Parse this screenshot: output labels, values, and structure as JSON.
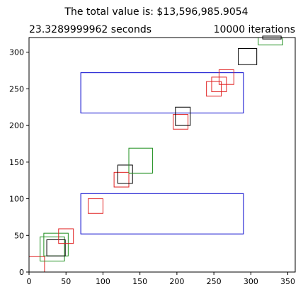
{
  "chart_data": {
    "type": "rectangles",
    "title": "The total value is: $13,596,985.9054",
    "subtitle_left": "23.3289999962 seconds",
    "subtitle_right": "10000 iterations",
    "xlabel": "",
    "ylabel": "",
    "xlim": [
      0,
      360
    ],
    "ylim": [
      0,
      320
    ],
    "x_ticks": [
      0,
      50,
      100,
      150,
      200,
      250,
      300,
      350
    ],
    "y_ticks": [
      0,
      50,
      100,
      150,
      200,
      250,
      300
    ],
    "grid": false,
    "colors": {
      "blue": "#0000cc",
      "red": "#e02020",
      "green": "#1f8f1f",
      "black": "#000000"
    },
    "rects": [
      {
        "x": 70,
        "y": 217,
        "w": 220,
        "h": 55,
        "color": "blue"
      },
      {
        "x": 70,
        "y": 52,
        "w": 220,
        "h": 55,
        "color": "blue"
      },
      {
        "x": 0,
        "y": 0,
        "w": 21,
        "h": 21,
        "color": "red"
      },
      {
        "x": 15,
        "y": 15,
        "w": 33,
        "h": 33,
        "color": "green"
      },
      {
        "x": 20,
        "y": 22,
        "w": 33,
        "h": 31,
        "color": "green"
      },
      {
        "x": 24,
        "y": 22,
        "w": 25,
        "h": 22,
        "color": "black"
      },
      {
        "x": 40,
        "y": 39,
        "w": 20,
        "h": 20,
        "color": "red"
      },
      {
        "x": 80,
        "y": 80,
        "w": 20,
        "h": 20,
        "color": "red"
      },
      {
        "x": 115,
        "y": 116,
        "w": 20,
        "h": 20,
        "color": "red"
      },
      {
        "x": 120,
        "y": 121,
        "w": 20,
        "h": 25,
        "color": "black"
      },
      {
        "x": 135,
        "y": 135,
        "w": 32,
        "h": 34,
        "color": "green"
      },
      {
        "x": 195,
        "y": 195,
        "w": 20,
        "h": 20,
        "color": "red"
      },
      {
        "x": 198,
        "y": 200,
        "w": 20,
        "h": 25,
        "color": "black"
      },
      {
        "x": 240,
        "y": 240,
        "w": 20,
        "h": 20,
        "color": "red"
      },
      {
        "x": 247,
        "y": 246,
        "w": 20,
        "h": 20,
        "color": "red"
      },
      {
        "x": 257,
        "y": 256,
        "w": 20,
        "h": 20,
        "color": "red"
      },
      {
        "x": 283,
        "y": 283,
        "w": 25,
        "h": 22,
        "color": "black"
      },
      {
        "x": 310,
        "y": 310,
        "w": 33,
        "h": 10,
        "color": "green"
      },
      {
        "x": 316,
        "y": 318,
        "w": 25,
        "h": 4,
        "color": "black"
      }
    ]
  }
}
